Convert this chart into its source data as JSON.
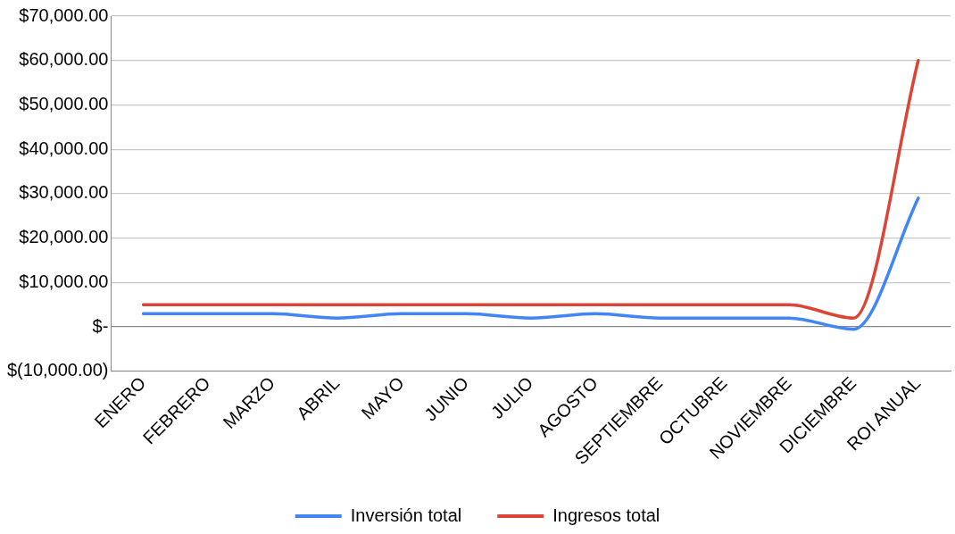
{
  "chart_data": {
    "type": "line",
    "categories": [
      "ENERO",
      "FEBRERO",
      "MARZO",
      "ABRIL",
      "MAYO",
      "JUNIO",
      "JULIO",
      "AGOSTO",
      "SEPTIEMBRE",
      "OCTUBRE",
      "NOVIEMBRE",
      "DICIEMBRE",
      "ROI ANUAL"
    ],
    "series": [
      {
        "name": "Inversión total",
        "color": "#4285f4",
        "values": [
          3000,
          3000,
          3000,
          2000,
          3000,
          3000,
          2000,
          3000,
          2000,
          2000,
          2000,
          -500,
          29000
        ]
      },
      {
        "name": "Ingresos total",
        "color": "#db4437",
        "values": [
          5000,
          5000,
          5000,
          5000,
          5000,
          5000,
          5000,
          5000,
          5000,
          5000,
          5000,
          2000,
          60000
        ]
      }
    ],
    "ylim": [
      -10000,
      70000
    ],
    "yticks": [
      {
        "value": -10000,
        "label": "$(10,000.00)"
      },
      {
        "value": 0,
        "label": "$-"
      },
      {
        "value": 10000,
        "label": "$10,000.00"
      },
      {
        "value": 20000,
        "label": "$20,000.00"
      },
      {
        "value": 30000,
        "label": "$30,000.00"
      },
      {
        "value": 40000,
        "label": "$40,000.00"
      },
      {
        "value": 50000,
        "label": "$50,000.00"
      },
      {
        "value": 60000,
        "label": "$60,000.00"
      },
      {
        "value": 70000,
        "label": "$70,000.00"
      }
    ],
    "grid": "y",
    "legend": "bottom",
    "marker": "none",
    "line_style": "solid"
  }
}
